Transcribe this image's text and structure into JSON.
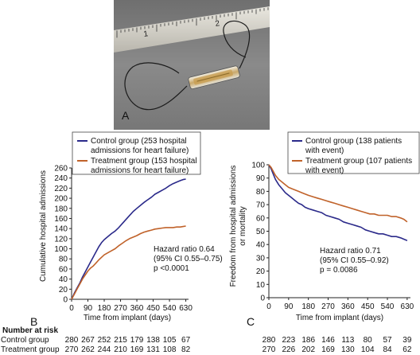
{
  "photo": {
    "panel_label": "A",
    "ruler_numbers": [
      "1",
      "2"
    ]
  },
  "chart_data": [
    {
      "type": "line",
      "panel_label": "B",
      "xlabel": "Time from implant (days)",
      "ylabel": "Cumulative hospital admissions",
      "xlim": [
        0,
        645
      ],
      "ylim": [
        0,
        260
      ],
      "xticks": [
        0,
        90,
        180,
        270,
        360,
        450,
        540,
        630
      ],
      "yticks": [
        0,
        20,
        40,
        60,
        80,
        100,
        120,
        140,
        160,
        180,
        200,
        220,
        240,
        260
      ],
      "grid": false,
      "legend_position": "top",
      "legend": [
        "Control group (253 hospital admissions for heart failure)",
        "Treatment group (153 hospital admissions for heart failure)"
      ],
      "annotation": [
        "Hazard ratio 0.64",
        "(95% CI 0.55–0.75)",
        "p <0.0001"
      ],
      "series": [
        {
          "name": "Control group (253 hospital admissions for heart failure)",
          "color": "#2b2a8a",
          "x": [
            0,
            15,
            30,
            45,
            60,
            75,
            90,
            105,
            120,
            135,
            150,
            165,
            180,
            200,
            220,
            240,
            260,
            280,
            300,
            320,
            340,
            360,
            380,
            400,
            420,
            440,
            460,
            480,
            500,
            520,
            540,
            560,
            580,
            600,
            615,
            630
          ],
          "y": [
            0,
            12,
            22,
            32,
            44,
            54,
            64,
            74,
            84,
            94,
            104,
            112,
            118,
            124,
            130,
            135,
            142,
            150,
            158,
            166,
            174,
            180,
            186,
            192,
            197,
            202,
            208,
            212,
            216,
            220,
            225,
            229,
            232,
            235,
            237,
            238
          ]
        },
        {
          "name": "Treatment group (153 hospital admissions for heart failure)",
          "color": "#c0622a",
          "x": [
            0,
            15,
            30,
            45,
            60,
            75,
            90,
            105,
            120,
            135,
            150,
            165,
            180,
            200,
            220,
            240,
            260,
            280,
            300,
            320,
            340,
            360,
            380,
            400,
            420,
            440,
            460,
            480,
            500,
            520,
            540,
            560,
            580,
            600,
            615,
            630
          ],
          "y": [
            0,
            10,
            20,
            30,
            40,
            48,
            56,
            62,
            66,
            72,
            78,
            83,
            88,
            92,
            96,
            100,
            106,
            111,
            116,
            120,
            123,
            126,
            130,
            133,
            135,
            137,
            139,
            140,
            141,
            142,
            142,
            142,
            143,
            143,
            144,
            145
          ]
        }
      ]
    },
    {
      "type": "line",
      "panel_label": "C",
      "xlabel": "Time from implant (days)",
      "ylabel": "Freedom from hospital admissions or mortality",
      "xlim": [
        0,
        645
      ],
      "ylim": [
        0,
        100
      ],
      "xticks": [
        0,
        90,
        180,
        270,
        360,
        450,
        540,
        630
      ],
      "yticks": [
        0,
        10,
        20,
        30,
        40,
        50,
        60,
        70,
        80,
        90,
        100
      ],
      "grid": false,
      "legend_position": "top",
      "legend": [
        "Control group (138 patients with event)",
        "Treatment group (107 patients with event)"
      ],
      "annotation": [
        "Hazard ratio 0.71",
        "(95% CI 0.55–0.92)",
        "p = 0.0086"
      ],
      "series": [
        {
          "name": "Control group (138 patients with event)",
          "color": "#2b2a8a",
          "x": [
            0,
            10,
            20,
            30,
            45,
            60,
            75,
            90,
            105,
            120,
            135,
            150,
            165,
            180,
            200,
            220,
            240,
            260,
            280,
            300,
            320,
            340,
            360,
            380,
            400,
            420,
            440,
            460,
            480,
            500,
            520,
            540,
            560,
            580,
            600,
            615,
            630
          ],
          "y": [
            100,
            97,
            93,
            89,
            85,
            82,
            79,
            77,
            75,
            73,
            71,
            70,
            68,
            67,
            66,
            65,
            64,
            62,
            61,
            60,
            59,
            57,
            56,
            55,
            54,
            53,
            51,
            50,
            49,
            48,
            48,
            47,
            46,
            46,
            45,
            44,
            43
          ]
        },
        {
          "name": "Treatment group (107 patients with event)",
          "color": "#c0622a",
          "x": [
            0,
            10,
            20,
            30,
            45,
            60,
            75,
            90,
            105,
            120,
            135,
            150,
            165,
            180,
            200,
            220,
            240,
            260,
            280,
            300,
            320,
            340,
            360,
            380,
            400,
            420,
            440,
            460,
            480,
            500,
            520,
            540,
            560,
            580,
            600,
            615,
            630
          ],
          "y": [
            100,
            98,
            95,
            92,
            89,
            87,
            85,
            83,
            82,
            81,
            80,
            79,
            78,
            77,
            76,
            75,
            74,
            73,
            72,
            71,
            70,
            69,
            68,
            67,
            66,
            65,
            64,
            63,
            63,
            62,
            62,
            62,
            61,
            61,
            60,
            59,
            57
          ]
        }
      ]
    }
  ],
  "risk_table": {
    "heading": "Number at risk",
    "control_label": "Control group",
    "treatment_label": "Treatment group",
    "b_control": [
      "280",
      "267",
      "252",
      "215",
      "179",
      "138",
      "105",
      "67"
    ],
    "b_treatment": [
      "270",
      "262",
      "244",
      "210",
      "169",
      "131",
      "108",
      "82"
    ],
    "c_control": [
      "280",
      "223",
      "186",
      "146",
      "113",
      "80",
      "57",
      "39"
    ],
    "c_treatment": [
      "270",
      "226",
      "202",
      "169",
      "130",
      "104",
      "84",
      "62"
    ]
  }
}
